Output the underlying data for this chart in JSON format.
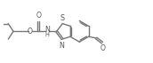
{
  "bg_color": "#ffffff",
  "line_color": "#777777",
  "line_width": 1.0,
  "figsize": [
    1.72,
    0.71
  ],
  "dpi": 100,
  "xlim": [
    0,
    10.5
  ],
  "ylim": [
    0,
    4.35
  ]
}
